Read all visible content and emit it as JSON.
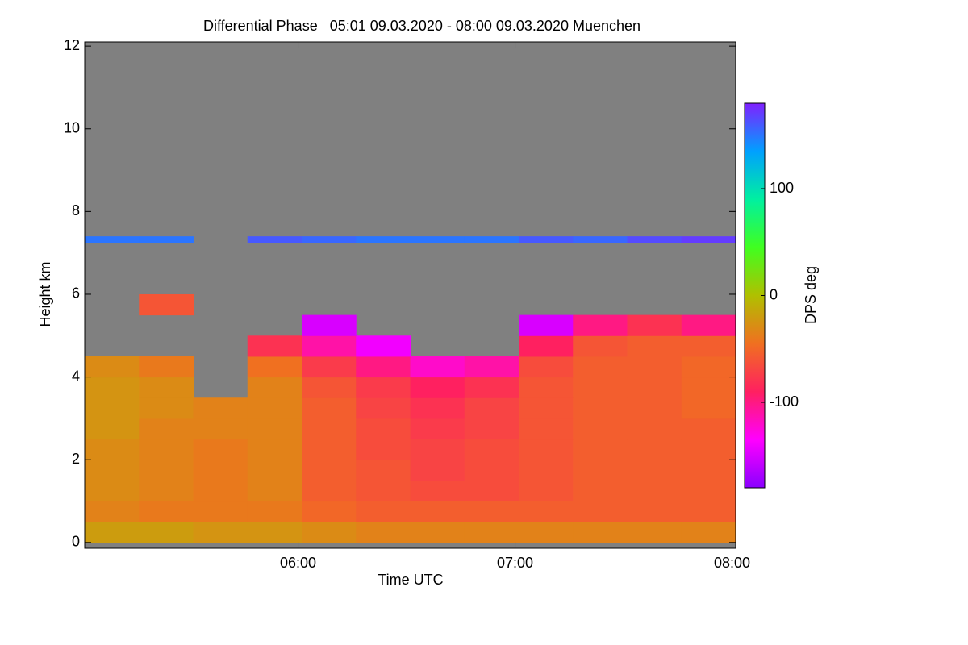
{
  "chart_data": {
    "type": "heatmap",
    "title": "Differential Phase   05:01 09.03.2020 - 08:00 09.03.2020 Muenchen",
    "xlabel": "Time UTC",
    "ylabel": "Height km",
    "colorbar_label": "DPS deg",
    "xlim": [
      301,
      481
    ],
    "ylim": [
      -0.14,
      12.1
    ],
    "xticks": [
      {
        "value": 360,
        "label": "06:00"
      },
      {
        "value": 420,
        "label": "07:00"
      },
      {
        "value": 480,
        "label": "08:00"
      }
    ],
    "yticks": [
      0,
      2,
      4,
      6,
      8,
      10,
      12
    ],
    "clim": [
      -180,
      180
    ],
    "cticks": [
      -100,
      0,
      100
    ],
    "colormap": [
      "#8a00ff",
      "#ff00ff",
      "#ff2060",
      "#f07020",
      "#b0c000",
      "#40ff20",
      "#00f0a0",
      "#00a0ff",
      "#8020ff"
    ],
    "background": "#808080",
    "x_edges": [
      301,
      316,
      331,
      346,
      361,
      376,
      391,
      406,
      421,
      436,
      451,
      466,
      481
    ],
    "y_edges": [
      0,
      0.5,
      1,
      1.5,
      2,
      2.5,
      3,
      3.5,
      4,
      4.5,
      5,
      5.5,
      6,
      7.25,
      7.4
    ],
    "values": [
      [
        -20,
        -20,
        -25,
        -25,
        -30,
        -35,
        -35,
        -35,
        -35,
        -35,
        -35,
        -35
      ],
      [
        -35,
        -40,
        -40,
        -40,
        -50,
        -55,
        -55,
        -55,
        -55,
        -55,
        -55,
        -55
      ],
      [
        -30,
        -35,
        -40,
        -35,
        -55,
        -60,
        -65,
        -65,
        -60,
        -55,
        -55,
        -55
      ],
      [
        -30,
        -35,
        -40,
        -35,
        -55,
        -60,
        -70,
        -65,
        -60,
        -55,
        -55,
        -55
      ],
      [
        -30,
        -35,
        -40,
        -35,
        -55,
        -65,
        -70,
        -65,
        -60,
        -55,
        -55,
        -55
      ],
      [
        -25,
        -35,
        -35,
        -35,
        -55,
        -65,
        -75,
        -70,
        -60,
        -55,
        -55,
        -55
      ],
      [
        -25,
        -30,
        -35,
        -35,
        -55,
        -70,
        -80,
        -70,
        -60,
        -55,
        -55,
        -50
      ],
      [
        -25,
        -30,
        null,
        -35,
        -60,
        -75,
        -90,
        -80,
        -60,
        -55,
        -55,
        -50
      ],
      [
        -30,
        -40,
        null,
        -45,
        -75,
        -100,
        -120,
        -110,
        -65,
        -55,
        -55,
        -50
      ],
      [
        null,
        null,
        null,
        -80,
        -110,
        -140,
        null,
        null,
        -90,
        -60,
        -55,
        -55
      ],
      [
        null,
        null,
        null,
        null,
        -150,
        null,
        null,
        null,
        -150,
        -100,
        -80,
        -100
      ],
      [
        null,
        -60,
        null,
        null,
        null,
        null,
        null,
        null,
        null,
        null,
        null,
        null
      ],
      [
        null,
        null,
        null,
        null,
        null,
        null,
        null,
        null,
        null,
        null,
        null,
        null
      ],
      [
        150,
        150,
        null,
        160,
        155,
        150,
        150,
        150,
        160,
        155,
        165,
        170
      ]
    ]
  }
}
